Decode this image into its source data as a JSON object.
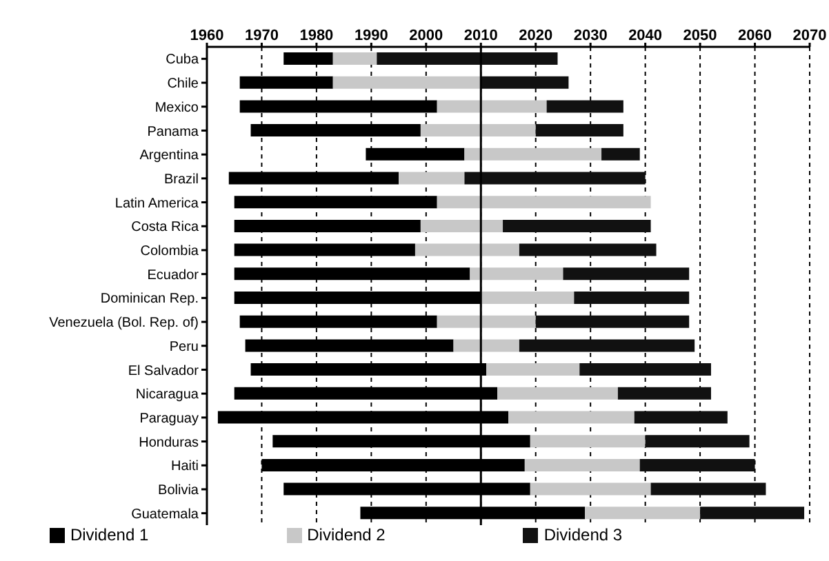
{
  "chart_data": {
    "type": "bar",
    "orientation": "horizontal",
    "categories": [
      "Cuba",
      "Chile",
      "Mexico",
      "Panama",
      "Argentina",
      "Brazil",
      "Latin America",
      "Costa Rica",
      "Colombia",
      "Ecuador",
      "Dominican Rep.",
      "Venezuela (Bol. Rep. of)",
      "Peru",
      "El Salvador",
      "Nicaragua",
      "Paraguay",
      "Honduras",
      "Haiti",
      "Bolivia",
      "Guatemala"
    ],
    "series": [
      {
        "name": "Dividend 1",
        "color": "#000000",
        "base": [
          1974,
          1966,
          1966,
          1968,
          1989,
          1964,
          1965,
          1965,
          1965,
          1965,
          1965,
          1966,
          1967,
          1968,
          1965,
          1962,
          1972,
          1970,
          1974,
          1988
        ],
        "values": [
          9,
          17,
          36,
          31,
          18,
          31,
          37,
          34,
          33,
          43,
          45,
          36,
          38,
          43,
          48,
          53,
          47,
          48,
          45,
          41
        ]
      },
      {
        "name": "Dividend 2",
        "color": "#c8c8c8",
        "base": [
          1983,
          1983,
          2002,
          1999,
          2007,
          1995,
          2002,
          1999,
          1998,
          2008,
          2010,
          2002,
          2005,
          2011,
          2013,
          2015,
          2019,
          2018,
          2019,
          2029
        ],
        "values": [
          8,
          27,
          20,
          21,
          25,
          12,
          39,
          15,
          19,
          17,
          17,
          18,
          12,
          17,
          22,
          23,
          21,
          21,
          22,
          21
        ]
      },
      {
        "name": "Dividend 3",
        "color": "#111111",
        "base": [
          1991,
          2010,
          2022,
          2020,
          2032,
          2007,
          null,
          2014,
          2017,
          2025,
          2027,
          2020,
          2017,
          2028,
          2035,
          2038,
          2040,
          2039,
          2041,
          2050
        ],
        "values": [
          33,
          16,
          14,
          16,
          7,
          33,
          null,
          27,
          25,
          23,
          21,
          28,
          32,
          24,
          17,
          17,
          19,
          21,
          21,
          19
        ]
      }
    ],
    "xlim": [
      1960,
      2070
    ],
    "xticks": [
      1960,
      1970,
      1980,
      1990,
      2000,
      2010,
      2020,
      2030,
      2040,
      2050,
      2060,
      2070
    ],
    "ref_lines": [
      {
        "axis": "x",
        "value": 2010,
        "color": "#000000",
        "line_style": "solid"
      }
    ],
    "grid": "x",
    "legend": "bottom"
  }
}
